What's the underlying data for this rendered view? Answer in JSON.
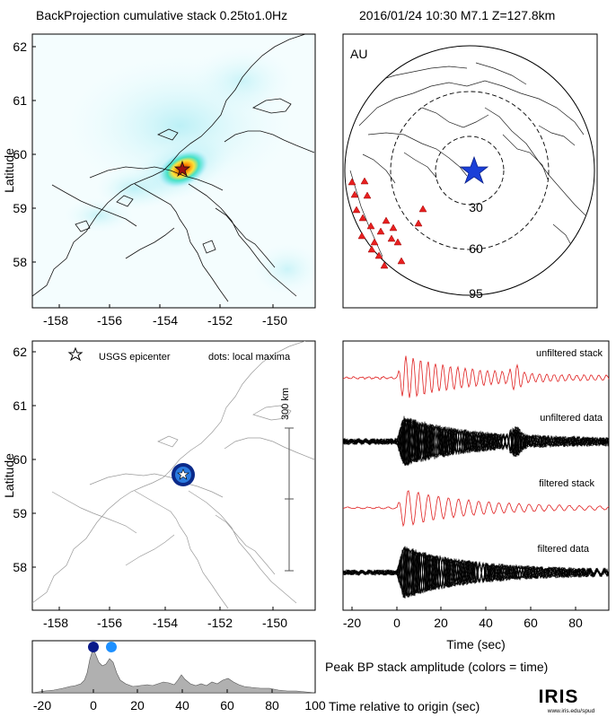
{
  "header": {
    "left_title": "BackProjection cumulative stack 0.25to1.0Hz",
    "right_title": "2016/01/24 10:30   M7.1   Z=127.8km"
  },
  "map_top": {
    "ylabel": "Latitude",
    "lat_ticks": [
      "62",
      "61",
      "60",
      "59",
      "58"
    ],
    "lon_ticks": [
      "-158",
      "-156",
      "-154",
      "-152",
      "-150"
    ]
  },
  "globe": {
    "array_label": "AU",
    "ring_labels": [
      "30",
      "60",
      "95"
    ]
  },
  "map_bottom": {
    "ylabel": "Latitude",
    "lat_ticks": [
      "62",
      "61",
      "60",
      "59",
      "58"
    ],
    "lon_ticks": [
      "-158",
      "-156",
      "-154",
      "-152",
      "-150"
    ],
    "legend_star": "USGS epicenter",
    "legend_dots": "dots: local maxima",
    "scale_label": "300 km"
  },
  "traces": {
    "labels": [
      "unfiltered stack",
      "unfiltered data",
      "filtered stack",
      "filtered data"
    ],
    "x_ticks": [
      "-20",
      "0",
      "20",
      "40",
      "60",
      "80"
    ],
    "xlabel": "Time (sec)"
  },
  "amplitude": {
    "x_ticks": [
      "-20",
      "0",
      "20",
      "40",
      "60",
      "80",
      "100"
    ],
    "title": "Peak BP stack amplitude (colors = time)",
    "xlabel": "Time relative to origin (sec)"
  },
  "logo": {
    "text": "IRIS",
    "url": "www.iris.edu/spud"
  },
  "colors": {
    "trace_stack": "#e02020",
    "trace_data": "#000000",
    "station_marker": "#e82020",
    "epicenter_star": "#1a3fd8",
    "peak_dot_early": "#0a1a8a",
    "peak_dot_late": "#1e90ff",
    "amplitude_fill": "#b0b0b0"
  }
}
